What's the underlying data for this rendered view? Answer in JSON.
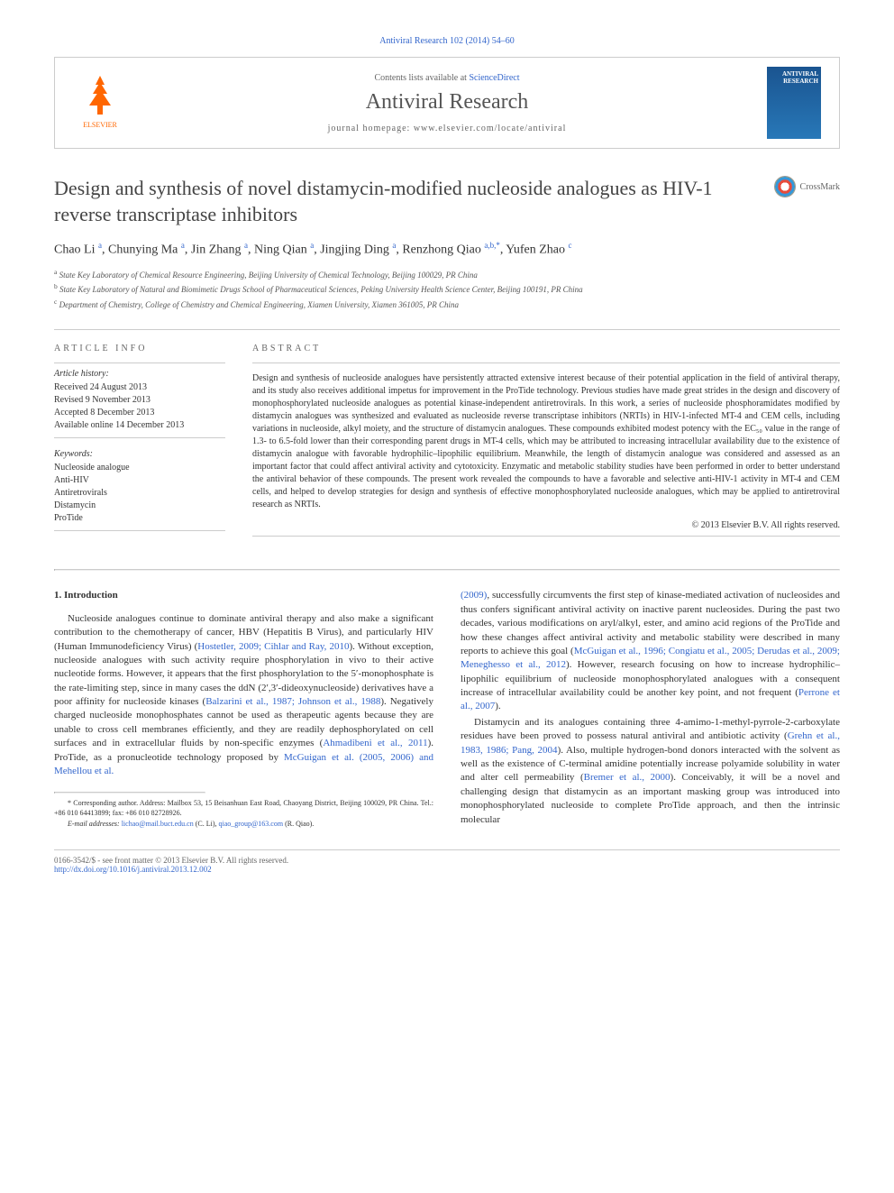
{
  "citation": "Antiviral Research 102 (2014) 54–60",
  "header": {
    "contents_prefix": "Contents lists available at ",
    "contents_link": "ScienceDirect",
    "journal": "Antiviral Research",
    "homepage_prefix": "journal homepage: ",
    "homepage": "www.elsevier.com/locate/antiviral",
    "cover_text": "ANTIVIRAL RESEARCH"
  },
  "crossmark": "CrossMark",
  "title": "Design and synthesis of novel distamycin-modified nucleoside analogues as HIV-1 reverse transcriptase inhibitors",
  "authors_html": "Chao Li <sup>a</sup>, Chunying Ma <sup>a</sup>, Jin Zhang <sup>a</sup>, Ning Qian <sup>a</sup>, Jingjing Ding <sup>a</sup>, Renzhong Qiao <sup>a,b,*</sup>, Yufen Zhao <sup>c</sup>",
  "affiliations": [
    {
      "sup": "a",
      "text": "State Key Laboratory of Chemical Resource Engineering, Beijing University of Chemical Technology, Beijing 100029, PR China"
    },
    {
      "sup": "b",
      "text": "State Key Laboratory of Natural and Biomimetic Drugs School of Pharmaceutical Sciences, Peking University Health Science Center, Beijing 100191, PR China"
    },
    {
      "sup": "c",
      "text": "Department of Chemistry, College of Chemistry and Chemical Engineering, Xiamen University, Xiamen 361005, PR China"
    }
  ],
  "info": {
    "heading": "ARTICLE INFO",
    "history_label": "Article history:",
    "history": [
      "Received 24 August 2013",
      "Revised 9 November 2013",
      "Accepted 8 December 2013",
      "Available online 14 December 2013"
    ],
    "keywords_label": "Keywords:",
    "keywords": [
      "Nucleoside analogue",
      "Anti-HIV",
      "Antiretrovirals",
      "Distamycin",
      "ProTide"
    ]
  },
  "abstract": {
    "heading": "ABSTRACT",
    "text": "Design and synthesis of nucleoside analogues have persistently attracted extensive interest because of their potential application in the field of antiviral therapy, and its study also receives additional impetus for improvement in the ProTide technology. Previous studies have made great strides in the design and discovery of monophosphorylated nucleoside analogues as potential kinase-independent antiretrovirals. In this work, a series of nucleoside phosphoramidates modified by distamycin analogues was synthesized and evaluated as nucleoside reverse transcriptase inhibitors (NRTIs) in HIV-1-infected MT-4 and CEM cells, including variations in nucleoside, alkyl moiety, and the structure of distamycin analogues. These compounds exhibited modest potency with the EC₅₀ value in the range of 1.3- to 6.5-fold lower than their corresponding parent drugs in MT-4 cells, which may be attributed to increasing intracellular availability due to the existence of distamycin analogue with favorable hydrophilic–lipophilic equilibrium. Meanwhile, the length of distamycin analogue was considered and assessed as an important factor that could affect antiviral activity and cytotoxicity. Enzymatic and metabolic stability studies have been performed in order to better understand the antiviral behavior of these compounds. The present work revealed the compounds to have a favorable and selective anti-HIV-1 activity in MT-4 and CEM cells, and helped to develop strategies for design and synthesis of effective monophosphorylated nucleoside analogues, which may be applied to antiretroviral research as NRTIs.",
    "copyright": "© 2013 Elsevier B.V. All rights reserved."
  },
  "body": {
    "section_heading": "1. Introduction",
    "col1_p1": "Nucleoside analogues continue to dominate antiviral therapy and also make a significant contribution to the chemotherapy of cancer, HBV (Hepatitis B Virus), and particularly HIV (Human Immunodeficiency Virus) (",
    "col1_ref1": "Hostetler, 2009; Cihlar and Ray, 2010",
    "col1_p1b": "). Without exception, nucleoside analogues with such activity require phosphorylation in vivo to their active nucleotide forms. However, it appears that the first phosphorylation to the 5′-monophosphate is the rate-limiting step, since in many cases the ddN (2′,3′-dideoxynucleoside) derivatives have a poor affinity for nucleoside kinases (",
    "col1_ref2": "Balzarini et al., 1987; Johnson et al., 1988",
    "col1_p1c": "). Negatively charged nucleoside monophosphates cannot be used as therapeutic agents because they are unable to cross cell membranes efficiently, and they are readily dephosphorylated on cell surfaces and in extracellular fluids by non-specific enzymes (",
    "col1_ref3": "Ahmadibeni et al., 2011",
    "col1_p1d": "). ProTide, as a pronucleotide technology proposed by ",
    "col1_ref4": "McGuigan et al. (2005, 2006) and Mehellou et al.",
    "col2_ref1": "(2009)",
    "col2_p1": ", successfully circumvents the first step of kinase-mediated activation of nucleosides and thus confers significant antiviral activity on inactive parent nucleosides. During the past two decades, various modifications on aryl/alkyl, ester, and amino acid regions of the ProTide and how these changes affect antiviral activity and metabolic stability were described in many reports to achieve this goal (",
    "col2_ref2": "McGuigan et al., 1996; Congiatu et al., 2005; Derudas et al., 2009; Meneghesso et al., 2012",
    "col2_p1b": "). However, research focusing on how to increase hydrophilic–lipophilic equilibrium of nucleoside monophosphorylated analogues with a consequent increase of intracellular availability could be another key point, and not frequent (",
    "col2_ref3": "Perrone et al., 2007",
    "col2_p1c": ").",
    "col2_p2": "Distamycin and its analogues containing three 4-amimo-1-methyl-pyrrole-2-carboxylate residues have been proved to possess natural antiviral and antibiotic activity (",
    "col2_ref4": "Grehn et al., 1983, 1986; Pang, 2004",
    "col2_p2b": "). Also, multiple hydrogen-bond donors interacted with the solvent as well as the existence of C-terminal amidine potentially increase polyamide solubility in water and alter cell permeability (",
    "col2_ref5": "Bremer et al., 2000",
    "col2_p2c": "). Conceivably, it will be a novel and challenging design that distamycin as an important masking group was introduced into monophosphorylated nucleoside to complete ProTide approach, and then the intrinsic molecular"
  },
  "footnote": {
    "star": "*",
    "text1": " Corresponding author. Address: Mailbox 53, 15 Beisanhuan East Road, Chaoyang District, Beijing 100029, PR China. Tel.: +86 010 64413899; fax: +86 010 82728926.",
    "email_label": "E-mail addresses: ",
    "email1": "lichao@mail.buct.edu.cn",
    "email1_name": " (C. Li), ",
    "email2": "qiao_group@163.com",
    "email2_name": " (R. Qiao)."
  },
  "footer": {
    "line1": "0166-3542/$ - see front matter © 2013 Elsevier B.V. All rights reserved.",
    "doi": "http://dx.doi.org/10.1016/j.antiviral.2013.12.002"
  }
}
